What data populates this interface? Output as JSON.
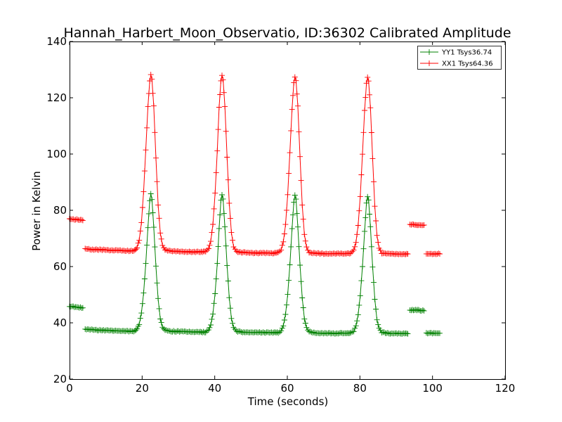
{
  "chart_data": {
    "type": "line",
    "title": "Hannah_Harbert_Moon_Observatio, ID:36302 Calibrated Amplitude",
    "xlabel": "Time (seconds)",
    "ylabel": "Power in Kelvin",
    "xlim": [
      0,
      120
    ],
    "ylim": [
      20,
      140
    ],
    "x_ticks": [
      0,
      20,
      40,
      60,
      80,
      100,
      120
    ],
    "y_ticks": [
      20,
      40,
      60,
      80,
      100,
      120,
      140
    ],
    "x_tick_labels": [
      "0",
      "20",
      "40",
      "60",
      "80",
      "100",
      "120"
    ],
    "y_tick_labels": [
      "20",
      "40",
      "60",
      "80",
      "100",
      "120",
      "140"
    ],
    "grid": false,
    "legend_position": "top-right",
    "marker": "+",
    "series": [
      {
        "name": "YY1 Tsys36.74",
        "color": "#008000",
        "points": [
          [
            0.0,
            45.8
          ],
          [
            2.0,
            45.6
          ],
          [
            4.0,
            45.3
          ],
          [
            4.3,
            37.8
          ],
          [
            6.0,
            37.6
          ],
          [
            8.0,
            37.4
          ],
          [
            10.0,
            37.3
          ],
          [
            12.0,
            37.2
          ],
          [
            14.0,
            37.1
          ],
          [
            16.0,
            37.0
          ],
          [
            17.0,
            37.0
          ],
          [
            18.0,
            37.1
          ],
          [
            18.6,
            37.8
          ],
          [
            19.2,
            39.5
          ],
          [
            19.8,
            43.5
          ],
          [
            20.4,
            50.5
          ],
          [
            21.0,
            61.0
          ],
          [
            21.6,
            74.0
          ],
          [
            22.1,
            83.5
          ],
          [
            22.4,
            85.8
          ],
          [
            22.7,
            84.0
          ],
          [
            23.2,
            74.0
          ],
          [
            23.8,
            60.0
          ],
          [
            24.4,
            48.5
          ],
          [
            25.0,
            41.5
          ],
          [
            25.6,
            38.5
          ],
          [
            26.3,
            37.4
          ],
          [
            28.0,
            37.0
          ],
          [
            30.0,
            36.9
          ],
          [
            32.0,
            36.9
          ],
          [
            34.0,
            36.8
          ],
          [
            36.0,
            36.7
          ],
          [
            37.5,
            36.7
          ],
          [
            38.3,
            37.4
          ],
          [
            38.9,
            39.2
          ],
          [
            39.5,
            43.2
          ],
          [
            40.1,
            50.5
          ],
          [
            40.7,
            61.0
          ],
          [
            41.2,
            73.5
          ],
          [
            41.7,
            83.5
          ],
          [
            42.0,
            85.6
          ],
          [
            42.3,
            84.0
          ],
          [
            42.8,
            74.0
          ],
          [
            43.4,
            60.5
          ],
          [
            44.0,
            49.0
          ],
          [
            44.6,
            41.5
          ],
          [
            45.2,
            38.3
          ],
          [
            46.0,
            37.0
          ],
          [
            48.0,
            36.7
          ],
          [
            50.0,
            36.6
          ],
          [
            52.0,
            36.6
          ],
          [
            54.0,
            36.5
          ],
          [
            56.0,
            36.5
          ],
          [
            57.5,
            36.5
          ],
          [
            58.3,
            37.2
          ],
          [
            58.9,
            39.0
          ],
          [
            59.5,
            43.0
          ],
          [
            60.1,
            50.0
          ],
          [
            60.7,
            60.5
          ],
          [
            61.3,
            73.5
          ],
          [
            61.8,
            83.0
          ],
          [
            62.1,
            85.3
          ],
          [
            62.4,
            83.8
          ],
          [
            62.9,
            74.0
          ],
          [
            63.5,
            60.5
          ],
          [
            64.1,
            49.0
          ],
          [
            64.7,
            41.5
          ],
          [
            65.3,
            38.2
          ],
          [
            66.0,
            36.8
          ],
          [
            68.0,
            36.4
          ],
          [
            70.0,
            36.3
          ],
          [
            72.0,
            36.3
          ],
          [
            74.0,
            36.3
          ],
          [
            76.0,
            36.3
          ],
          [
            77.5,
            36.4
          ],
          [
            78.3,
            37.0
          ],
          [
            78.9,
            38.8
          ],
          [
            79.5,
            42.8
          ],
          [
            80.1,
            49.8
          ],
          [
            80.7,
            60.0
          ],
          [
            81.3,
            72.5
          ],
          [
            81.8,
            82.5
          ],
          [
            82.1,
            85.0
          ],
          [
            82.4,
            83.5
          ],
          [
            82.9,
            74.0
          ],
          [
            83.5,
            60.0
          ],
          [
            84.1,
            48.5
          ],
          [
            84.7,
            41.0
          ],
          [
            85.3,
            38.0
          ],
          [
            86.0,
            36.6
          ],
          [
            88.0,
            36.3
          ],
          [
            90.0,
            36.2
          ],
          [
            92.0,
            36.2
          ],
          [
            93.5,
            36.2
          ],
          [
            93.8,
            44.6
          ],
          [
            96.0,
            44.5
          ],
          [
            98.0,
            44.3
          ],
          [
            98.3,
            36.4
          ],
          [
            100.0,
            36.3
          ],
          [
            102.0,
            36.3
          ]
        ]
      },
      {
        "name": "XX1 Tsys64.36",
        "color": "#ff0000",
        "points": [
          [
            0.0,
            76.9
          ],
          [
            2.0,
            76.7
          ],
          [
            4.0,
            76.4
          ],
          [
            4.3,
            66.3
          ],
          [
            6.0,
            66.1
          ],
          [
            8.0,
            66.0
          ],
          [
            10.0,
            65.9
          ],
          [
            12.0,
            65.8
          ],
          [
            14.0,
            65.7
          ],
          [
            16.0,
            65.6
          ],
          [
            17.0,
            65.6
          ],
          [
            18.0,
            65.8
          ],
          [
            18.6,
            66.8
          ],
          [
            19.2,
            69.5
          ],
          [
            19.8,
            75.5
          ],
          [
            20.4,
            86.5
          ],
          [
            21.0,
            101.5
          ],
          [
            21.6,
            117.0
          ],
          [
            22.1,
            126.0
          ],
          [
            22.4,
            128.2
          ],
          [
            22.7,
            126.5
          ],
          [
            23.2,
            117.0
          ],
          [
            23.8,
            98.5
          ],
          [
            24.4,
            82.0
          ],
          [
            25.0,
            72.0
          ],
          [
            25.6,
            67.5
          ],
          [
            26.3,
            66.0
          ],
          [
            28.0,
            65.5
          ],
          [
            30.0,
            65.4
          ],
          [
            32.0,
            65.3
          ],
          [
            34.0,
            65.2
          ],
          [
            36.0,
            65.2
          ],
          [
            37.5,
            65.3
          ],
          [
            38.3,
            66.3
          ],
          [
            38.9,
            69.0
          ],
          [
            39.5,
            75.0
          ],
          [
            40.1,
            86.0
          ],
          [
            40.7,
            101.0
          ],
          [
            41.2,
            116.5
          ],
          [
            41.7,
            126.0
          ],
          [
            42.0,
            128.0
          ],
          [
            42.3,
            126.5
          ],
          [
            42.8,
            117.0
          ],
          [
            43.4,
            99.0
          ],
          [
            44.0,
            82.5
          ],
          [
            44.6,
            72.0
          ],
          [
            45.2,
            67.0
          ],
          [
            46.0,
            65.3
          ],
          [
            48.0,
            65.0
          ],
          [
            50.0,
            64.9
          ],
          [
            52.0,
            64.8
          ],
          [
            54.0,
            64.8
          ],
          [
            56.0,
            64.8
          ],
          [
            57.5,
            64.9
          ],
          [
            58.3,
            66.0
          ],
          [
            58.9,
            68.8
          ],
          [
            59.5,
            74.8
          ],
          [
            60.1,
            85.5
          ],
          [
            60.7,
            100.5
          ],
          [
            61.3,
            116.0
          ],
          [
            61.8,
            125.5
          ],
          [
            62.1,
            127.5
          ],
          [
            62.4,
            126.0
          ],
          [
            62.9,
            117.0
          ],
          [
            63.5,
            99.0
          ],
          [
            64.1,
            82.0
          ],
          [
            64.7,
            71.5
          ],
          [
            65.3,
            66.8
          ],
          [
            66.0,
            65.0
          ],
          [
            68.0,
            64.7
          ],
          [
            70.0,
            64.6
          ],
          [
            72.0,
            64.6
          ],
          [
            74.0,
            64.6
          ],
          [
            76.0,
            64.6
          ],
          [
            77.5,
            64.7
          ],
          [
            78.3,
            65.8
          ],
          [
            78.9,
            68.5
          ],
          [
            79.5,
            74.5
          ],
          [
            80.1,
            85.0
          ],
          [
            80.7,
            100.0
          ],
          [
            81.3,
            115.5
          ],
          [
            81.8,
            125.0
          ],
          [
            82.1,
            127.3
          ],
          [
            82.4,
            125.8
          ],
          [
            82.9,
            116.5
          ],
          [
            83.5,
            98.5
          ],
          [
            84.1,
            81.5
          ],
          [
            84.7,
            71.0
          ],
          [
            85.3,
            66.5
          ],
          [
            86.0,
            64.8
          ],
          [
            88.0,
            64.6
          ],
          [
            90.0,
            64.5
          ],
          [
            92.0,
            64.5
          ],
          [
            93.5,
            64.5
          ],
          [
            93.8,
            74.9
          ],
          [
            96.0,
            74.8
          ],
          [
            98.0,
            74.6
          ],
          [
            98.3,
            64.5
          ],
          [
            100.0,
            64.5
          ],
          [
            102.0,
            64.5
          ]
        ]
      }
    ]
  }
}
